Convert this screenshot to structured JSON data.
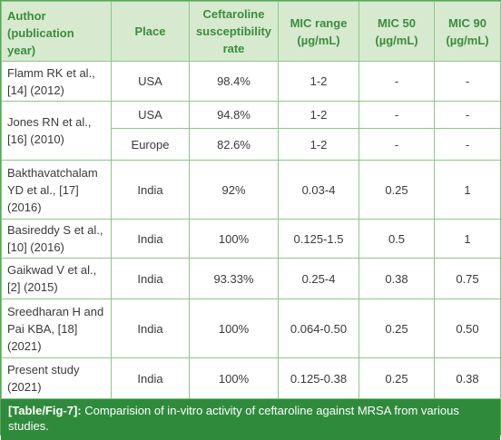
{
  "table": {
    "header": [
      "Author (publication year)",
      "Place",
      "Ceftaroline susceptibility rate",
      "MIC range (µg/mL)",
      "MIC 50 (µg/mL)",
      "MIC 90 (µg/mL)"
    ],
    "rows": [
      [
        "Flamm RK et al., [14] (2012)",
        "USA",
        "98.4%",
        "1-2",
        "-",
        "-"
      ],
      [
        "Jones RN et al., [16] (2010)",
        "USA",
        "94.8%",
        "1-2",
        "-",
        "-"
      ],
      [
        "Europe",
        "82.6%",
        "1-2",
        "-",
        "-"
      ],
      [
        "Bakthavatchalam YD et al., [17] (2016)",
        "India",
        "92%",
        "0.03-4",
        "0.25",
        "1"
      ],
      [
        "Basireddy S et al., [10] (2016)",
        "India",
        "100%",
        "0.125-1.5",
        "0.5",
        "1"
      ],
      [
        "Gaikwad V et al., [2] (2015)",
        "India",
        "93.33%",
        "0.25-4",
        "0.38",
        "0.75"
      ],
      [
        "Sreedharan H and Pai KBA, [18] (2021)",
        "India",
        "100%",
        "0.064-0.50",
        "0.25",
        "0.50"
      ],
      [
        "Present study (2021)",
        "India",
        "100%",
        "0.125-0.38",
        "0.25",
        "0.38"
      ]
    ]
  },
  "caption": {
    "label": "[Table/Fig-7]:",
    "text": "Comparision of in-vitro activity of ceftaroline against MRSA from various studies."
  }
}
